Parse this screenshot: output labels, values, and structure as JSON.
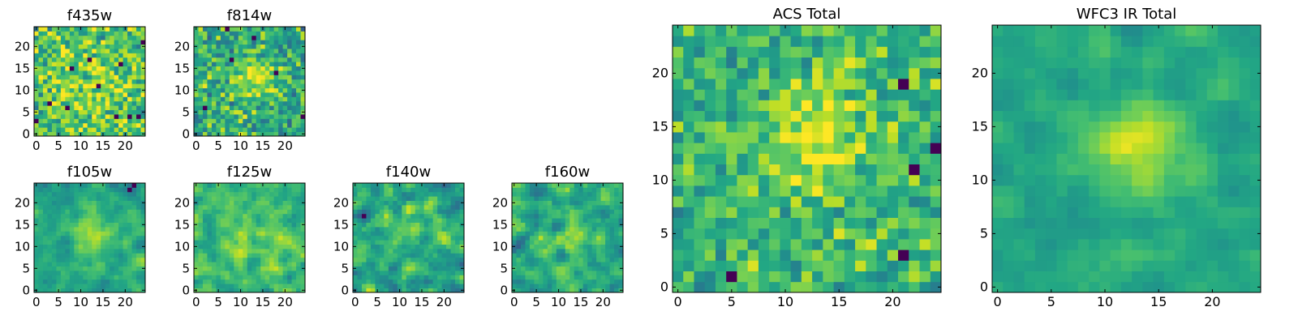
{
  "figure": {
    "background": "#ffffff"
  },
  "chart_data": [
    {
      "type": "heatmap",
      "title": "f435w",
      "xlabel": "",
      "ylabel": "",
      "grid_size": 25,
      "xlim": [
        -0.5,
        24.5
      ],
      "ylim": [
        -0.5,
        24.5
      ],
      "xticks": [
        0,
        5,
        10,
        15,
        20
      ],
      "yticks": [
        0,
        5,
        10,
        15,
        20
      ],
      "colormap": "viridis",
      "description_source": "estimated",
      "noise": 0.32,
      "peak": {
        "x": 12,
        "y": 9,
        "sigma": 5.0,
        "amp": 0.15
      },
      "base": 0.72,
      "seed": 11
    },
    {
      "type": "heatmap",
      "title": "f814w",
      "xlabel": "",
      "ylabel": "",
      "grid_size": 25,
      "xlim": [
        -0.5,
        24.5
      ],
      "ylim": [
        -0.5,
        24.5
      ],
      "xticks": [
        0,
        5,
        10,
        15,
        20
      ],
      "yticks": [
        0,
        5,
        10,
        15,
        20
      ],
      "colormap": "viridis",
      "description_source": "estimated",
      "noise": 0.3,
      "peak": {
        "x": 13,
        "y": 13,
        "sigma": 3.5,
        "amp": 0.3
      },
      "base": 0.62,
      "seed": 23
    },
    {
      "type": "heatmap",
      "title": "f105w",
      "xlabel": "",
      "ylabel": "",
      "grid_size": 25,
      "xlim": [
        -0.5,
        24.5
      ],
      "ylim": [
        -0.5,
        24.5
      ],
      "xticks": [
        0,
        5,
        10,
        15,
        20
      ],
      "yticks": [
        0,
        5,
        10,
        15,
        20
      ],
      "colormap": "viridis",
      "description_source": "estimated",
      "noise": 0.2,
      "peak": {
        "x": 13,
        "y": 13,
        "sigma": 3.0,
        "amp": 0.3
      },
      "base": 0.6,
      "seed": 37,
      "smooth": true
    },
    {
      "type": "heatmap",
      "title": "f125w",
      "xlabel": "",
      "ylabel": "",
      "grid_size": 25,
      "xlim": [
        -0.5,
        24.5
      ],
      "ylim": [
        -0.5,
        24.5
      ],
      "xticks": [
        0,
        5,
        10,
        15,
        20
      ],
      "yticks": [
        0,
        5,
        10,
        15,
        20
      ],
      "colormap": "viridis",
      "description_source": "estimated",
      "noise": 0.26,
      "peak": {
        "x": 12,
        "y": 12,
        "sigma": 5.0,
        "amp": 0.12
      },
      "base": 0.66,
      "seed": 41,
      "smooth": true
    },
    {
      "type": "heatmap",
      "title": "f140w",
      "xlabel": "",
      "ylabel": "",
      "grid_size": 25,
      "xlim": [
        -0.5,
        24.5
      ],
      "ylim": [
        -0.5,
        24.5
      ],
      "xticks": [
        0,
        5,
        10,
        15,
        20
      ],
      "yticks": [
        0,
        5,
        10,
        15,
        20
      ],
      "colormap": "viridis",
      "description_source": "estimated",
      "noise": 0.3,
      "peak": {
        "x": 10,
        "y": 14,
        "sigma": 4.0,
        "amp": 0.1
      },
      "base": 0.6,
      "seed": 53,
      "smooth": true
    },
    {
      "type": "heatmap",
      "title": "f160w",
      "xlabel": "",
      "ylabel": "",
      "grid_size": 25,
      "xlim": [
        -0.5,
        24.5
      ],
      "ylim": [
        -0.5,
        24.5
      ],
      "xticks": [
        0,
        5,
        10,
        15,
        20
      ],
      "yticks": [
        0,
        5,
        10,
        15,
        20
      ],
      "colormap": "viridis",
      "description_source": "estimated",
      "noise": 0.3,
      "peak": {
        "x": 12,
        "y": 11,
        "sigma": 4.0,
        "amp": 0.15
      },
      "base": 0.6,
      "seed": 67,
      "smooth": true
    },
    {
      "type": "heatmap",
      "title": "ACS Total",
      "xlabel": "",
      "ylabel": "",
      "grid_size": 25,
      "xlim": [
        -0.5,
        24.5
      ],
      "ylim": [
        -0.5,
        24.5
      ],
      "xticks": [
        0,
        5,
        10,
        15,
        20
      ],
      "yticks": [
        0,
        5,
        10,
        15,
        20
      ],
      "colormap": "viridis",
      "description_source": "estimated",
      "noise": 0.24,
      "peak": {
        "x": 13,
        "y": 14,
        "sigma": 3.5,
        "amp": 0.28
      },
      "base": 0.66,
      "seed": 79
    },
    {
      "type": "heatmap",
      "title": "WFC3 IR Total",
      "xlabel": "",
      "ylabel": "",
      "grid_size": 25,
      "xlim": [
        -0.5,
        24.5
      ],
      "ylim": [
        -0.5,
        24.5
      ],
      "xticks": [
        0,
        5,
        10,
        15,
        20
      ],
      "yticks": [
        0,
        5,
        10,
        15,
        20
      ],
      "colormap": "viridis",
      "description_source": "estimated",
      "noise": 0.14,
      "peak": {
        "x": 13,
        "y": 13,
        "sigma": 3.2,
        "amp": 0.32
      },
      "base": 0.6,
      "seed": 97,
      "smooth": true
    }
  ]
}
